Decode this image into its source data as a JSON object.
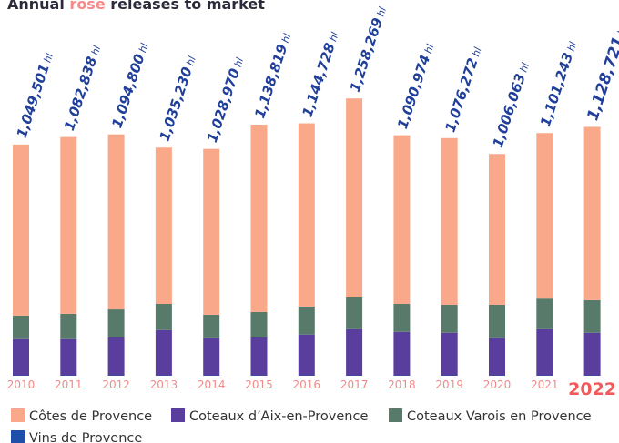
{
  "chart_data": {
    "type": "stacked_bar",
    "title": {
      "before": "Annual",
      "highlight": "rosé",
      "after": "releases to market"
    },
    "categories": [
      "2010",
      "2011",
      "2012",
      "2013",
      "2014",
      "2015",
      "2016",
      "2017",
      "2018",
      "2019",
      "2020",
      "2021",
      "2022"
    ],
    "series": [
      {
        "name": "Vins de Provence",
        "color": "#1f4fa8",
        "values": [
          2000,
          2000,
          2000,
          2000,
          2000,
          2000,
          2000,
          2000,
          2000,
          2000,
          2000,
          2000,
          2000
        ]
      },
      {
        "name": "Coteaux d’Aix-en-Provence",
        "color": "#5a3e9e",
        "values": [
          164000,
          164000,
          172000,
          205000,
          168000,
          172000,
          185000,
          209000,
          197000,
          193000,
          168000,
          209000,
          193000
        ]
      },
      {
        "name": "Coteaux Varois en Provence",
        "color": "#587a6b",
        "values": [
          107000,
          115000,
          127000,
          119000,
          107000,
          115000,
          127000,
          144000,
          127000,
          127000,
          152000,
          139000,
          148000
        ]
      },
      {
        "name": "Côtes de Provence",
        "color": "#f9a98a",
        "values": [
          776000,
          802000,
          794000,
          709000,
          752000,
          850000,
          831000,
          903000,
          765000,
          756000,
          684000,
          751000,
          786000
        ]
      }
    ],
    "legend_order": [
      3,
      1,
      2,
      0
    ],
    "totals": [
      1049501,
      1082838,
      1094800,
      1035230,
      1028970,
      1138819,
      1144728,
      1258269,
      1090974,
      1076272,
      1006063,
      1101243,
      1128721
    ],
    "total_labels": [
      "1,049,501",
      "1,082,838",
      "1,094,800",
      "1,035,230",
      "1,028,970",
      "1,138,819",
      "1,144,728",
      "1,258,269",
      "1,090,974",
      "1,076,272",
      "1,006,063",
      "1,101,243",
      "1,128,721"
    ],
    "value_unit": "hl",
    "ylim": [
      0,
      1300000
    ]
  }
}
